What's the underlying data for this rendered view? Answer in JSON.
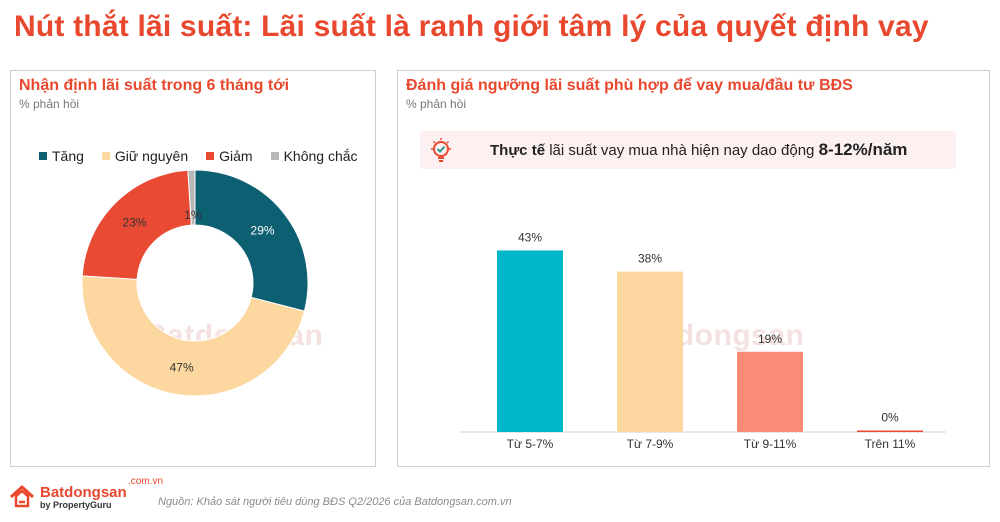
{
  "headline": "Nút thắt lãi suất: Lãi suất là ranh giới tâm lý của quyết định vay",
  "left_panel": {
    "title": "Nhận định lãi suất trong 6 tháng tới",
    "subtitle": "% phản hồi"
  },
  "right_panel": {
    "title": "Đánh giá ngưỡng lãi suất phù hợp để vay mua/đầu tư BĐS",
    "subtitle": "% phản hồi",
    "callout": {
      "bold_part": "Thực tế",
      "text": " lãi suất vay mua nhà hiện nay dao động ",
      "highlight": "8-12%/năm",
      "icon": "lightbulb-check-icon"
    }
  },
  "watermark": "Batdongsan",
  "watermark_tld": ".com.vn",
  "footer": {
    "logo_name": "Batdongsan",
    "logo_tld": ".com.vn",
    "logo_by": "by PropertyGuru",
    "source": "Nguồn: Khảo sát người tiêu dùng BĐS Q2/2026 của Batdongsan.com.vn"
  },
  "colors": {
    "accent": "#e8482e",
    "teal_dark": "#0d5f72",
    "peach": "#fcd8a0",
    "red": "#e84a33",
    "grey": "#b8b8b8",
    "cyan": "#00b7c9",
    "salmon": "#fb8a77",
    "callout_bg": "#fdf0f0"
  },
  "chart_data": [
    {
      "type": "pie",
      "variant": "donut",
      "categories": [
        "Tăng",
        "Giữ nguyên",
        "Giảm",
        "Không chắc"
      ],
      "values": [
        29,
        47,
        23,
        1
      ],
      "labels": [
        "29%",
        "47%",
        "23%",
        "1%"
      ],
      "legend_position": "top",
      "colors": [
        "#0d5f72",
        "#fcd8a0",
        "#e84a33",
        "#b8b8b8"
      ]
    },
    {
      "type": "bar",
      "categories": [
        "Từ 5-7%",
        "Từ 7-9%",
        "Từ 9-11%",
        "Trên 11%"
      ],
      "values": [
        43,
        38,
        19,
        0
      ],
      "labels": [
        "43%",
        "38%",
        "19%",
        "0%"
      ],
      "ylim": [
        0,
        45
      ],
      "grid": false,
      "colors": [
        "#00b7c9",
        "#fcd8a0",
        "#fb8a77",
        "#e84a33"
      ]
    }
  ]
}
